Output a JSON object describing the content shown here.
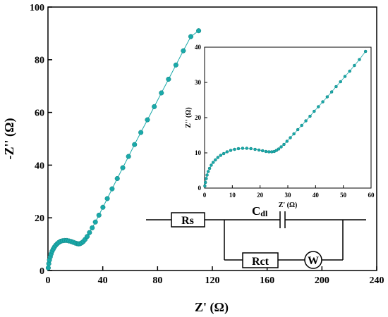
{
  "chart_data": [
    {
      "type": "scatter",
      "title": "",
      "xlabel": "Z' (Ω)",
      "ylabel": "-Z'' (Ω)",
      "xlim": [
        0,
        240
      ],
      "ylim": [
        0,
        100
      ],
      "xticks": [
        0,
        40,
        80,
        120,
        160,
        200,
        240
      ],
      "yticks": [
        0,
        20,
        40,
        60,
        80,
        100
      ],
      "grid": false,
      "marker_color": "#1aa9a9",
      "series": [
        {
          "x": [
            0.2,
            0.6,
            1.1,
            1.7,
            2.3,
            3.0,
            3.8,
            4.7,
            5.7,
            6.8,
            8.0,
            9.3,
            10.7,
            12.2,
            13.8,
            15.4,
            17.0,
            18.5,
            20.0,
            21.3,
            22.4,
            23.5,
            24.6,
            25.8,
            27.1,
            28.6,
            30.3,
            32.3,
            34.6,
            37.2,
            40.1,
            43.3,
            46.8,
            50.6,
            54.6,
            58.8,
            63.2,
            67.8,
            72.6,
            77.6,
            82.8,
            88.0,
            93.4,
            98.8,
            104.3,
            110.0
          ],
          "y": [
            1.0,
            2.6,
            4.0,
            5.2,
            6.3,
            7.3,
            8.1,
            8.9,
            9.6,
            10.2,
            10.7,
            11.1,
            11.3,
            11.4,
            11.4,
            11.2,
            11.0,
            10.7,
            10.4,
            10.2,
            10.1,
            10.2,
            10.5,
            11.0,
            11.8,
            12.9,
            14.4,
            16.2,
            18.4,
            21.0,
            24.0,
            27.3,
            31.0,
            34.9,
            39.0,
            43.3,
            47.8,
            52.4,
            57.2,
            62.2,
            67.4,
            72.6,
            78.0,
            83.4,
            88.8,
            91.0
          ]
        }
      ]
    },
    {
      "type": "scatter",
      "title": "",
      "xlabel": "Z' (Ω)",
      "ylabel": "Z'' (Ω)",
      "xlim": [
        0,
        60
      ],
      "ylim": [
        0,
        40
      ],
      "xticks": [
        0,
        10,
        20,
        30,
        40,
        50,
        60
      ],
      "yticks": [
        0,
        10,
        20,
        30,
        40
      ],
      "grid": false,
      "marker_color": "#1aa9a9",
      "series": [
        {
          "x": [
            0.1,
            0.3,
            0.6,
            0.9,
            1.3,
            1.8,
            2.4,
            3.1,
            3.9,
            4.8,
            5.8,
            6.9,
            8.1,
            9.4,
            10.8,
            12.2,
            13.7,
            15.2,
            16.7,
            18.2,
            19.6,
            20.9,
            22.1,
            23.2,
            24.2,
            25.1,
            25.9,
            26.7,
            27.6,
            28.6,
            29.7,
            30.9,
            32.2,
            33.6,
            35.0,
            36.5,
            38.0,
            39.5,
            41.0,
            42.6,
            44.2,
            45.8,
            47.4,
            49.0,
            50.6,
            52.3,
            54.0,
            55.8,
            58.0
          ],
          "y": [
            0.6,
            1.6,
            2.7,
            3.7,
            4.7,
            5.6,
            6.5,
            7.3,
            8.0,
            8.7,
            9.3,
            9.8,
            10.3,
            10.7,
            11.0,
            11.2,
            11.3,
            11.3,
            11.2,
            11.0,
            10.8,
            10.6,
            10.4,
            10.3,
            10.3,
            10.4,
            10.7,
            11.1,
            11.7,
            12.4,
            13.3,
            14.3,
            15.4,
            16.6,
            17.8,
            19.1,
            20.4,
            21.8,
            23.1,
            24.5,
            25.9,
            27.3,
            28.8,
            30.2,
            31.7,
            33.2,
            34.8,
            36.5,
            38.8
          ]
        }
      ]
    }
  ],
  "circuit": {
    "rs_label": "Rs",
    "cdl_label": "C",
    "cdl_sub": "dl",
    "rct_label": "Rct",
    "w_label": "W"
  }
}
